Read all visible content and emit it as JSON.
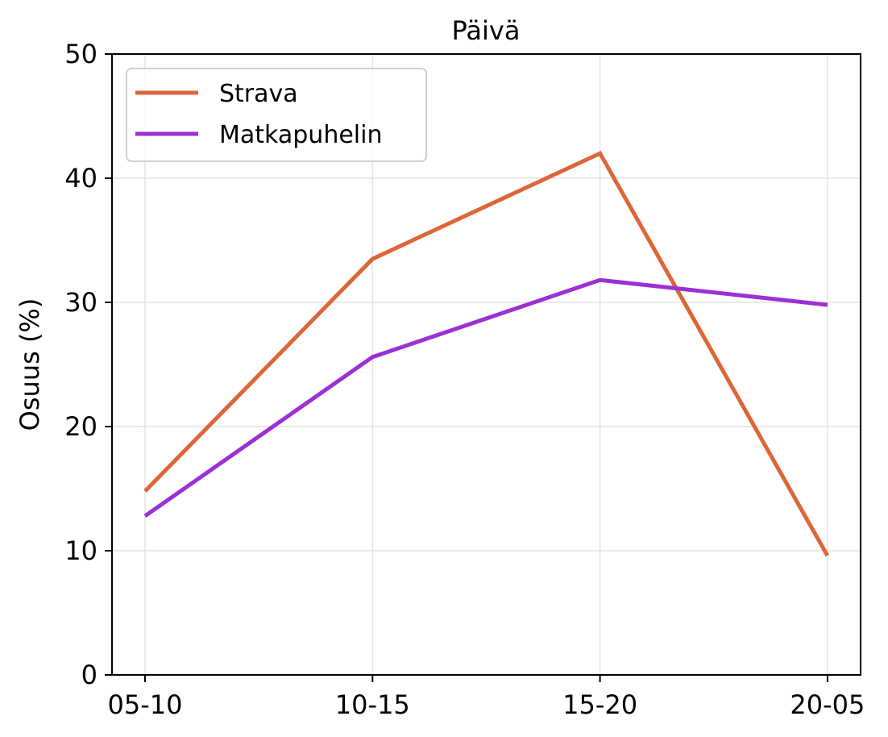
{
  "chart_data": {
    "type": "line",
    "title": "Päivä",
    "xlabel": "",
    "ylabel": "Osuus (%)",
    "categories": [
      "05-10",
      "10-15",
      "15-20",
      "20-05"
    ],
    "ylim": [
      0,
      50
    ],
    "yticks": [
      0,
      10,
      20,
      30,
      40,
      50
    ],
    "grid": true,
    "legend_position": "top-left",
    "series": [
      {
        "name": "Strava",
        "color": "#dd6639",
        "values": [
          14.8,
          33.5,
          42.0,
          9.6
        ]
      },
      {
        "name": "Matkapuhelin",
        "color": "#9b30d4",
        "values": [
          12.8,
          25.6,
          31.8,
          29.8
        ]
      }
    ]
  }
}
